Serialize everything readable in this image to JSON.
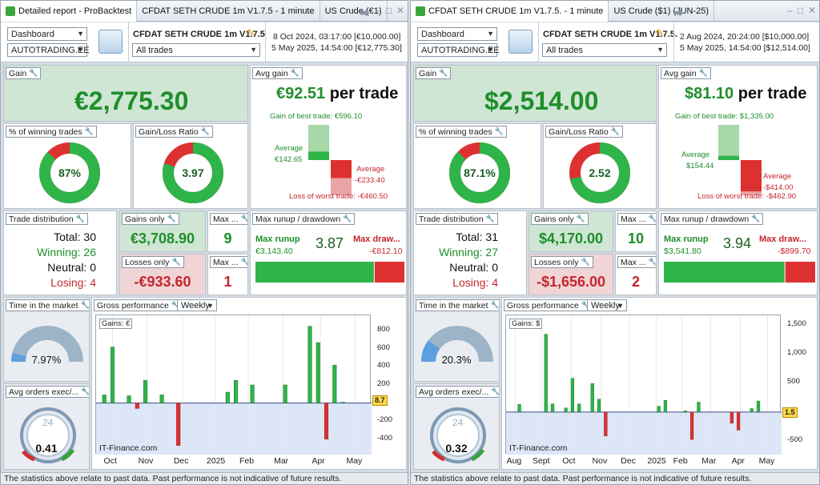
{
  "colors": {
    "green": "#2fb44a",
    "red": "#dd3131",
    "text_green": "#1f8e2a",
    "text_red": "#c4262e"
  },
  "left": {
    "tabs": [
      "Detailed report - ProBacktest",
      "CFDAT SETH CRUDE 1m V1.7.5 - 1 minute",
      "US Crude (€1)"
    ],
    "toolbar": {
      "view": "Dashboard",
      "account": "AUTOTRADING.EE",
      "system_name": "CFDAT SETH CRUDE 1m V1.7.5",
      "filter": "All trades",
      "date_start": "8 Oct 2024, 03:17:00 [€10,000.00]",
      "date_end": "5 May 2025, 14:54:00 [€12,775.30]"
    },
    "gain": {
      "label": "Gain",
      "value": "€2,775.30"
    },
    "avg_gain": {
      "label": "Avg gain",
      "value": "€92.51",
      "suffix": "per trade",
      "best": "Gain of best trade: €596.10",
      "avg_pos_label": "Average",
      "avg_pos": "€142.65",
      "avg_neg_label": "Average",
      "avg_neg": "-€233.40",
      "worst": "Loss of worst trade: -€460.50",
      "pos_fraction": 0.24,
      "neg_fraction": 0.51
    },
    "winning": {
      "label": "% of winning trades",
      "value": "87%",
      "fraction": 0.87
    },
    "ratio": {
      "label": "Gain/Loss Ratio",
      "value": "3.97",
      "fraction": 0.8
    },
    "dist": {
      "label": "Trade distribution",
      "total": "Total: 30",
      "winning": "Winning: 26",
      "neutral": "Neutral: 0",
      "losing": "Losing: 4"
    },
    "gains_only": {
      "label": "Gains only",
      "value": "€3,708.90"
    },
    "losses_only": {
      "label": "Losses only",
      "value": "-€933.60"
    },
    "max1": {
      "label": "Max ...",
      "value": "9"
    },
    "max2": {
      "label": "Max ...",
      "value": "1"
    },
    "runup": {
      "label": "Max runup / drawdown",
      "runup_label": "Max runup",
      "runup": "€3,143.40",
      "ratio": "3.87",
      "dd_label": "Max draw...",
      "dd": "-€812.10",
      "runup_fraction": 0.795
    },
    "time": {
      "label": "Time in the market",
      "value": "7.97%",
      "fraction": 0.0797
    },
    "orders": {
      "label": "Avg orders exec/...",
      "value": "0.41"
    },
    "perf": {
      "label": "Gross performance",
      "period": "Weekly",
      "badge": "Gains: €",
      "brand": "IT-Finance.com",
      "cursor": "8.7"
    },
    "footer": "The statistics above relate to past data. Past performance is not indicative of future results."
  },
  "right": {
    "tabs": [
      "CFDAT SETH CRUDE 1m V1.7.5. - 1 minute",
      "US Crude ($1) (JUN-25)"
    ],
    "toolbar": {
      "view": "Dashboard",
      "account": "AUTOTRADING.EE",
      "system_name": "CFDAT SETH CRUDE 1m V1.7.5.",
      "filter": "All trades",
      "date_start": "2 Aug 2024, 20:24:00 [$10,000.00]",
      "date_end": "5 May 2025, 14:54:00 [$12,514.00]"
    },
    "gain": {
      "label": "Gain",
      "value": "$2,514.00"
    },
    "avg_gain": {
      "label": "Avg gain",
      "value": "$81.10",
      "suffix": "per trade",
      "best": "Gain of best trade: $1,335.00",
      "avg_pos_label": "Average",
      "avg_pos": "$154.44",
      "avg_neg_label": "Average",
      "avg_neg": "-$414.00",
      "worst": "Loss of worst trade: -$462.90",
      "pos_fraction": 0.12,
      "neg_fraction": 0.89
    },
    "winning": {
      "label": "% of winning trades",
      "value": "87.1%",
      "fraction": 0.871
    },
    "ratio": {
      "label": "Gain/Loss Ratio",
      "value": "2.52",
      "fraction": 0.716
    },
    "dist": {
      "label": "Trade distribution",
      "total": "Total: 31",
      "winning": "Winning: 27",
      "neutral": "Neutral: 0",
      "losing": "Losing: 4"
    },
    "gains_only": {
      "label": "Gains only",
      "value": "$4,170.00"
    },
    "losses_only": {
      "label": "Losses only",
      "value": "-$1,656.00"
    },
    "max1": {
      "label": "Max ...",
      "value": "10"
    },
    "max2": {
      "label": "Max ...",
      "value": "2"
    },
    "runup": {
      "label": "Max runup / drawdown",
      "runup_label": "Max runup",
      "runup": "$3,541.80",
      "ratio": "3.94",
      "dd_label": "Max draw...",
      "dd": "-$899.70",
      "runup_fraction": 0.797
    },
    "time": {
      "label": "Time in the market",
      "value": "20.3%",
      "fraction": 0.203
    },
    "orders": {
      "label": "Avg orders exec/...",
      "value": "0.32"
    },
    "perf": {
      "label": "Gross performance",
      "period": "Weekly",
      "badge": "Gains: $",
      "brand": "IT-Finance.com",
      "cursor": "1.5"
    },
    "footer": "The statistics above relate to past data. Past performance is not indicative of future results."
  },
  "chart_data": [
    {
      "type": "bar",
      "title": "Gross performance",
      "ylabel": "Gains: €",
      "ylim": [
        -500,
        900
      ],
      "yticks": [
        800,
        600,
        400,
        200,
        -200,
        -400
      ],
      "xticks": [
        "Oct",
        "Nov",
        "Dec",
        "2025",
        "Feb",
        "Mar",
        "Apr",
        "May"
      ],
      "xtick_pos": [
        1,
        5.2,
        9.5,
        13.5,
        17.5,
        21.7,
        26.3,
        30.5
      ],
      "xlim": [
        -1,
        32.5
      ],
      "x": [
        0,
        1,
        3,
        4,
        5,
        7,
        9,
        11,
        15,
        16,
        18,
        20,
        22,
        25,
        26,
        27,
        28,
        29
      ],
      "values": [
        90,
        620,
        80,
        -60,
        250,
        90,
        -470,
        0,
        120,
        250,
        200,
        0,
        200,
        850,
        670,
        -400,
        420,
        10
      ]
    },
    {
      "type": "bar",
      "title": "Gross performance",
      "ylabel": "Gains: $",
      "ylim": [
        -620,
        1550
      ],
      "yticks": [
        1500,
        1000,
        500,
        -500
      ],
      "xticks": [
        "Aug",
        "Sept",
        "Oct",
        "Nov",
        "Dec",
        "2025",
        "Feb",
        "Mar",
        "Apr",
        "May"
      ],
      "xtick_pos": [
        0.4,
        4.3,
        8.8,
        13.3,
        17.6,
        21.6,
        25.5,
        29.8,
        34.3,
        38.4
      ],
      "xlim": [
        -1,
        40.5
      ],
      "x": [
        1,
        5,
        6,
        8,
        9,
        10,
        12,
        13,
        14,
        22,
        23,
        26,
        27,
        28,
        33,
        34,
        36,
        37
      ],
      "values": [
        130,
        1335,
        140,
        70,
        580,
        140,
        490,
        220,
        -410,
        100,
        200,
        20,
        -470,
        170,
        -190,
        -310,
        60,
        190
      ]
    }
  ]
}
